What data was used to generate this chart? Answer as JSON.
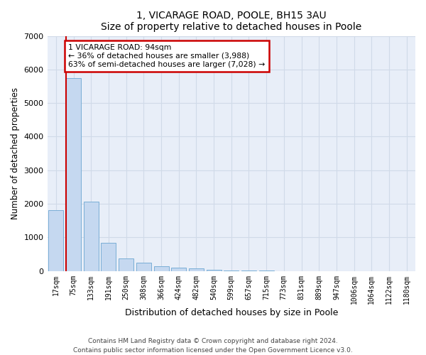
{
  "title": "1, VICARAGE ROAD, POOLE, BH15 3AU",
  "subtitle": "Size of property relative to detached houses in Poole",
  "xlabel": "Distribution of detached houses by size in Poole",
  "ylabel": "Number of detached properties",
  "footnote1": "Contains HM Land Registry data © Crown copyright and database right 2024.",
  "footnote2": "Contains public sector information licensed under the Open Government Licence v3.0.",
  "bar_labels": [
    "17sqm",
    "75sqm",
    "133sqm",
    "191sqm",
    "250sqm",
    "308sqm",
    "366sqm",
    "424sqm",
    "482sqm",
    "540sqm",
    "599sqm",
    "657sqm",
    "715sqm",
    "773sqm",
    "831sqm",
    "889sqm",
    "947sqm",
    "1006sqm",
    "1064sqm",
    "1122sqm",
    "1180sqm"
  ],
  "bar_values": [
    1800,
    5750,
    2060,
    830,
    380,
    240,
    145,
    90,
    85,
    35,
    5,
    2,
    2,
    0,
    0,
    0,
    0,
    0,
    0,
    0,
    0
  ],
  "bar_color": "#c5d8f0",
  "bar_edge_color": "#7aaed6",
  "property_sqm": 94,
  "annotation_text": "1 VICARAGE ROAD: 94sqm\n← 36% of detached houses are smaller (3,988)\n63% of semi-detached houses are larger (7,028) →",
  "annotation_box_color": "#ffffff",
  "annotation_box_edge_color": "#cc0000",
  "vline_color": "#cc0000",
  "ylim": [
    0,
    7000
  ],
  "yticks": [
    0,
    1000,
    2000,
    3000,
    4000,
    5000,
    6000,
    7000
  ],
  "grid_color": "#d0dae8",
  "bg_color": "#ffffff",
  "plot_bg_color": "#e8eef8"
}
